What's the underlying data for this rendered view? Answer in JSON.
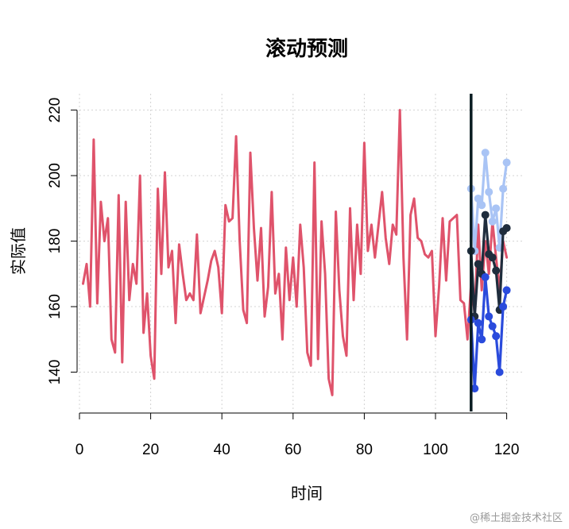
{
  "chart_data": {
    "type": "line",
    "title": "滚动预测",
    "xlabel": "时间",
    "ylabel": "实际值",
    "xlim": [
      0,
      125
    ],
    "ylim": [
      128,
      225
    ],
    "x_ticks": [
      0,
      20,
      40,
      60,
      80,
      100,
      120
    ],
    "y_ticks": [
      140,
      160,
      180,
      200,
      220
    ],
    "grid": true,
    "vline_x": 110,
    "series": [
      {
        "color": "#df536b",
        "x": [
          1,
          2,
          3,
          4,
          5,
          6,
          7,
          8,
          9,
          10,
          11,
          12,
          13,
          14,
          15,
          16,
          17,
          18,
          19,
          20,
          21,
          22,
          23,
          24,
          25,
          26,
          27,
          28,
          29,
          30,
          31,
          32,
          33,
          34,
          35,
          36,
          37,
          38,
          39,
          40,
          41,
          42,
          43,
          44,
          45,
          46,
          47,
          48,
          49,
          50,
          51,
          52,
          53,
          54,
          55,
          56,
          57,
          58,
          59,
          60,
          61,
          62,
          63,
          64,
          65,
          66,
          67,
          68,
          69,
          70,
          71,
          72,
          73,
          74,
          75,
          76,
          77,
          78,
          79,
          80,
          81,
          82,
          83,
          84,
          85,
          86,
          87,
          88,
          89,
          90,
          91,
          92,
          93,
          94,
          95,
          96,
          97,
          98,
          99,
          100,
          101,
          102,
          103,
          104,
          105,
          106,
          107,
          108,
          109,
          110,
          111,
          112,
          113,
          114,
          115,
          116,
          117,
          118,
          119,
          120
        ],
        "values": [
          167,
          173,
          160,
          211,
          161,
          192,
          180,
          187,
          150,
          146,
          194,
          143,
          192,
          162,
          173,
          167,
          200,
          152,
          164,
          145,
          138,
          196,
          170,
          201,
          172,
          177,
          155,
          179,
          170,
          162,
          164,
          162,
          182,
          158,
          163,
          168,
          174,
          177,
          172,
          158,
          191,
          186,
          187,
          212,
          180,
          159,
          155,
          207,
          184,
          168,
          184,
          157,
          166,
          195,
          164,
          170,
          150,
          178,
          162,
          175,
          160,
          185,
          172,
          146,
          142,
          204,
          144,
          186,
          170,
          138,
          133,
          189,
          165,
          151,
          145,
          190,
          162,
          185,
          170,
          210,
          177,
          185,
          175,
          185,
          195,
          181,
          173,
          185,
          182,
          220,
          175,
          150,
          188,
          193,
          181,
          180,
          176,
          175,
          177,
          151,
          166,
          187,
          168,
          186,
          187,
          188,
          162,
          161,
          150,
          167,
          158,
          185,
          165,
          180,
          170,
          186,
          175,
          165,
          180,
          175
        ]
      },
      {
        "color": "#a9c4f5",
        "x": [
          110,
          111,
          112,
          113,
          114,
          115,
          116,
          117,
          118,
          119,
          120
        ],
        "values": [
          196,
          177,
          193,
          191,
          207,
          195,
          186,
          190,
          178,
          196,
          204
        ]
      },
      {
        "color": "#1f2d3d",
        "x": [
          110,
          111,
          112,
          113,
          114,
          115,
          116,
          117,
          118,
          119,
          120
        ],
        "values": [
          177,
          157,
          173,
          170,
          188,
          176,
          175,
          171,
          159,
          183,
          184
        ]
      },
      {
        "color": "#2a4bdc",
        "x": [
          110,
          111,
          112,
          113,
          114,
          115,
          116,
          117,
          118,
          119,
          120
        ],
        "values": [
          156,
          135,
          155,
          150,
          169,
          157,
          154,
          151,
          140,
          160,
          165
        ]
      }
    ]
  },
  "watermark": "@稀土掘金技术社区"
}
